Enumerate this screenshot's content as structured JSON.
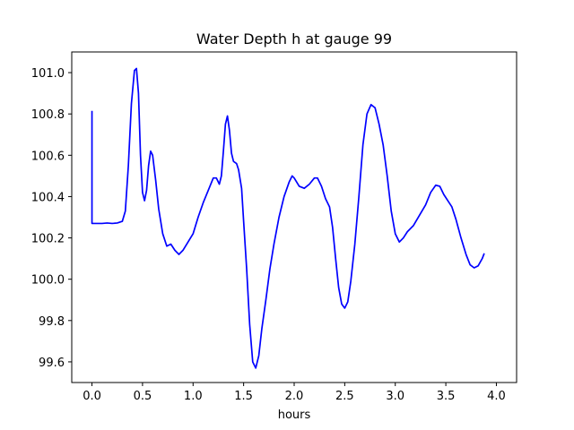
{
  "chart_data": {
    "type": "line",
    "title": "Water Depth h at gauge 99",
    "xlabel": "hours",
    "ylabel": "",
    "xlim": [
      -0.2,
      4.2
    ],
    "ylim": [
      99.5,
      101.1
    ],
    "xticks": [
      0.0,
      0.5,
      1.0,
      1.5,
      2.0,
      2.5,
      3.0,
      3.5,
      4.0
    ],
    "xtick_labels": [
      "0.0",
      "0.5",
      "1.0",
      "1.5",
      "2.0",
      "2.5",
      "3.0",
      "3.5",
      "4.0"
    ],
    "yticks": [
      99.6,
      99.8,
      100.0,
      100.2,
      100.4,
      100.6,
      100.8,
      101.0
    ],
    "ytick_labels": [
      "99.6",
      "99.8",
      "100.0",
      "100.2",
      "100.4",
      "100.6",
      "100.8",
      "101.0"
    ],
    "grid": false,
    "legend": "none",
    "series": [
      {
        "color": "#0000ff",
        "points": [
          [
            0.0,
            100.815
          ],
          [
            0.0,
            100.27
          ],
          [
            0.05,
            100.27
          ],
          [
            0.1,
            100.27
          ],
          [
            0.15,
            100.272
          ],
          [
            0.2,
            100.27
          ],
          [
            0.25,
            100.272
          ],
          [
            0.3,
            100.28
          ],
          [
            0.33,
            100.33
          ],
          [
            0.36,
            100.55
          ],
          [
            0.39,
            100.85
          ],
          [
            0.42,
            101.01
          ],
          [
            0.44,
            101.02
          ],
          [
            0.46,
            100.9
          ],
          [
            0.48,
            100.6
          ],
          [
            0.5,
            100.42
          ],
          [
            0.52,
            100.38
          ],
          [
            0.54,
            100.43
          ],
          [
            0.56,
            100.55
          ],
          [
            0.58,
            100.62
          ],
          [
            0.6,
            100.6
          ],
          [
            0.63,
            100.48
          ],
          [
            0.66,
            100.34
          ],
          [
            0.7,
            100.22
          ],
          [
            0.74,
            100.16
          ],
          [
            0.78,
            100.17
          ],
          [
            0.82,
            100.14
          ],
          [
            0.86,
            100.12
          ],
          [
            0.9,
            100.14
          ],
          [
            0.95,
            100.18
          ],
          [
            1.0,
            100.22
          ],
          [
            1.05,
            100.3
          ],
          [
            1.1,
            100.37
          ],
          [
            1.15,
            100.43
          ],
          [
            1.2,
            100.49
          ],
          [
            1.23,
            100.49
          ],
          [
            1.26,
            100.46
          ],
          [
            1.28,
            100.5
          ],
          [
            1.3,
            100.62
          ],
          [
            1.32,
            100.75
          ],
          [
            1.34,
            100.79
          ],
          [
            1.36,
            100.72
          ],
          [
            1.38,
            100.61
          ],
          [
            1.4,
            100.57
          ],
          [
            1.43,
            100.56
          ],
          [
            1.45,
            100.53
          ],
          [
            1.48,
            100.44
          ],
          [
            1.5,
            100.28
          ],
          [
            1.53,
            100.05
          ],
          [
            1.56,
            99.78
          ],
          [
            1.59,
            99.6
          ],
          [
            1.62,
            99.57
          ],
          [
            1.65,
            99.63
          ],
          [
            1.68,
            99.76
          ],
          [
            1.72,
            99.9
          ],
          [
            1.76,
            100.05
          ],
          [
            1.8,
            100.17
          ],
          [
            1.85,
            100.3
          ],
          [
            1.9,
            100.4
          ],
          [
            1.95,
            100.47
          ],
          [
            1.98,
            100.5
          ],
          [
            2.0,
            100.49
          ],
          [
            2.05,
            100.45
          ],
          [
            2.1,
            100.44
          ],
          [
            2.15,
            100.46
          ],
          [
            2.2,
            100.49
          ],
          [
            2.23,
            100.49
          ],
          [
            2.27,
            100.45
          ],
          [
            2.31,
            100.39
          ],
          [
            2.35,
            100.35
          ],
          [
            2.38,
            100.25
          ],
          [
            2.41,
            100.1
          ],
          [
            2.44,
            99.96
          ],
          [
            2.47,
            99.88
          ],
          [
            2.5,
            99.86
          ],
          [
            2.53,
            99.89
          ],
          [
            2.56,
            99.99
          ],
          [
            2.6,
            100.17
          ],
          [
            2.64,
            100.4
          ],
          [
            2.68,
            100.65
          ],
          [
            2.72,
            100.8
          ],
          [
            2.76,
            100.845
          ],
          [
            2.8,
            100.83
          ],
          [
            2.84,
            100.75
          ],
          [
            2.88,
            100.65
          ],
          [
            2.92,
            100.5
          ],
          [
            2.96,
            100.33
          ],
          [
            3.0,
            100.22
          ],
          [
            3.04,
            100.18
          ],
          [
            3.08,
            100.2
          ],
          [
            3.12,
            100.23
          ],
          [
            3.18,
            100.26
          ],
          [
            3.24,
            100.31
          ],
          [
            3.3,
            100.36
          ],
          [
            3.35,
            100.42
          ],
          [
            3.4,
            100.455
          ],
          [
            3.44,
            100.45
          ],
          [
            3.48,
            100.41
          ],
          [
            3.52,
            100.38
          ],
          [
            3.56,
            100.35
          ],
          [
            3.6,
            100.29
          ],
          [
            3.65,
            100.2
          ],
          [
            3.7,
            100.12
          ],
          [
            3.74,
            100.07
          ],
          [
            3.78,
            100.055
          ],
          [
            3.82,
            100.065
          ],
          [
            3.86,
            100.1
          ],
          [
            3.88,
            100.125
          ]
        ]
      }
    ]
  }
}
